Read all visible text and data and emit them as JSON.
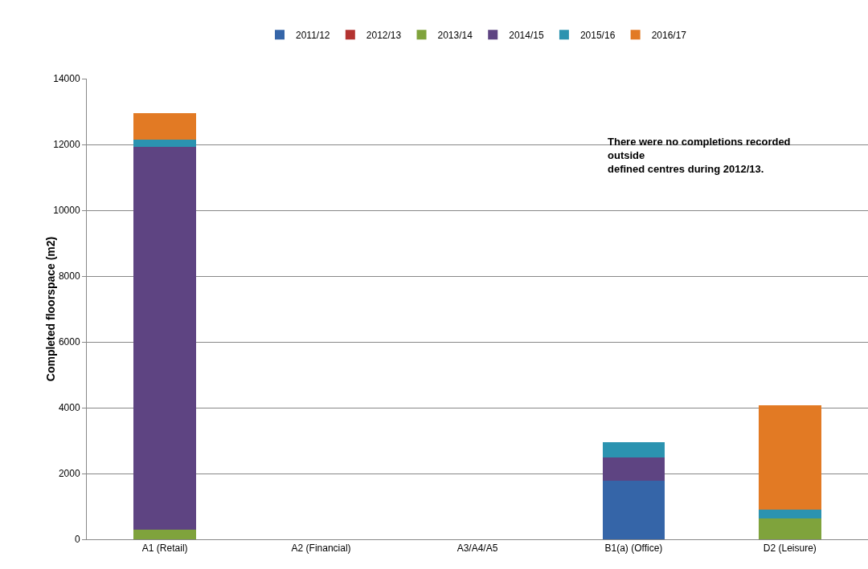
{
  "chart_data": {
    "type": "bar",
    "stacked": true,
    "ylabel": "Completed floorspace (m2)",
    "categories": [
      "A1 (Retail)",
      "A2 (Financial)",
      "A3/A4/A5",
      "B1(a) (Office)",
      "D2 (Leisure)"
    ],
    "series": [
      {
        "name": "2011/12",
        "color": "#3565a8",
        "values": [
          0,
          0,
          0,
          1780,
          0
        ]
      },
      {
        "name": "2012/13",
        "color": "#b33330",
        "values": [
          0,
          0,
          0,
          0,
          0
        ]
      },
      {
        "name": "2013/14",
        "color": "#7fa33c",
        "values": [
          300,
          0,
          0,
          0,
          630
        ]
      },
      {
        "name": "2014/15",
        "color": "#5e4482",
        "values": [
          11630,
          0,
          0,
          710,
          0
        ]
      },
      {
        "name": "2015/16",
        "color": "#2b93b0",
        "values": [
          220,
          0,
          0,
          460,
          270
        ]
      },
      {
        "name": "2016/17",
        "color": "#e27a24",
        "values": [
          800,
          0,
          0,
          0,
          3170
        ]
      }
    ],
    "ylim": [
      0,
      14000
    ],
    "yticks": [
      0,
      2000,
      4000,
      6000,
      8000,
      10000,
      12000,
      14000
    ],
    "grid": "y",
    "legend": "top",
    "annotations": [
      "There were no completions recorded outside defined centres during 2012/13."
    ]
  }
}
